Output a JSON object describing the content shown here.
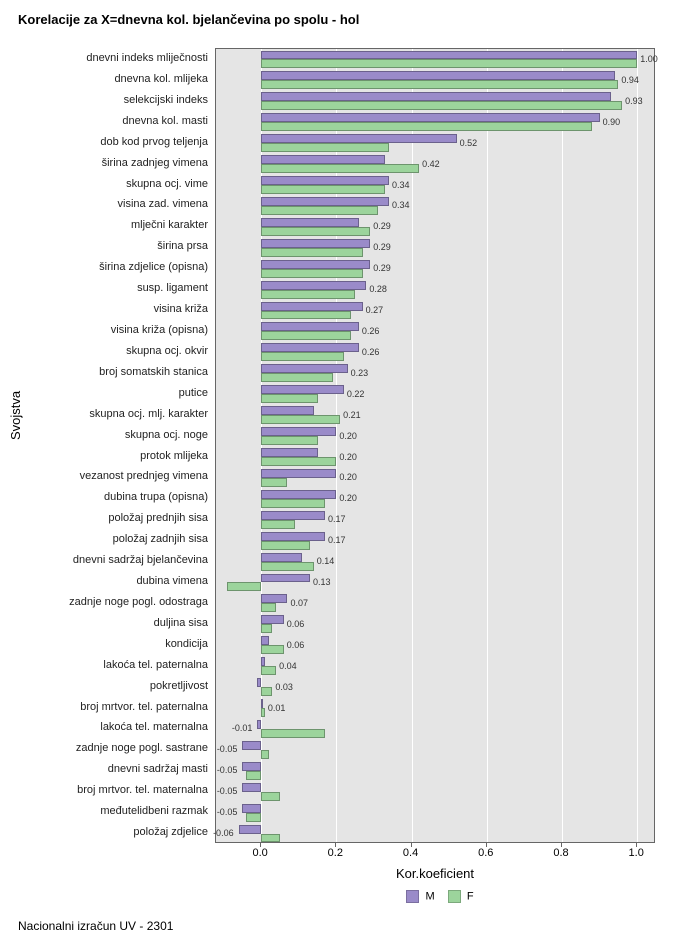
{
  "title": "Korelacije za X=dnevna kol. bjelančevina po spolu - hol",
  "y_axis_title": "Svojstva",
  "x_axis_title": "Kor.koeficient",
  "footer": "Nacionalni izračun UV - 2301",
  "legend": {
    "m": "M",
    "f": "F"
  },
  "colors": {
    "m": "#9a8bc9",
    "f": "#9cd49c",
    "panel_bg": "#e5e5e5",
    "grid": "#ffffff"
  },
  "xlim": [
    -0.12,
    1.05
  ],
  "x_ticks": [
    0.0,
    0.2,
    0.4,
    0.6,
    0.8,
    1.0
  ],
  "x_tick_labels": [
    "0.0",
    "0.2",
    "0.4",
    "0.6",
    "0.8",
    "1.0"
  ],
  "rows": [
    {
      "label": "dnevni indeks mliječnosti",
      "m": 1.0,
      "f": 1.0,
      "txt": "1.00"
    },
    {
      "label": "dnevna kol. mlijeka",
      "m": 0.94,
      "f": 0.95,
      "txt": "0.94"
    },
    {
      "label": "selekcijski indeks",
      "m": 0.93,
      "f": 0.96,
      "txt": "0.93"
    },
    {
      "label": "dnevna kol. masti",
      "m": 0.9,
      "f": 0.88,
      "txt": "0.90"
    },
    {
      "label": "dob kod prvog teljenja",
      "m": 0.52,
      "f": 0.34,
      "txt": "0.52"
    },
    {
      "label": "širina zadnjeg vimena",
      "m": 0.33,
      "f": 0.42,
      "txt": "0.42"
    },
    {
      "label": "skupna ocj. vime",
      "m": 0.34,
      "f": 0.33,
      "txt": "0.34"
    },
    {
      "label": "visina zad. vimena",
      "m": 0.34,
      "f": 0.31,
      "txt": "0.34"
    },
    {
      "label": "mlječni karakter",
      "m": 0.26,
      "f": 0.29,
      "txt": "0.29"
    },
    {
      "label": "širina prsa",
      "m": 0.29,
      "f": 0.27,
      "txt": "0.29"
    },
    {
      "label": "širina zdjelice (opisna)",
      "m": 0.29,
      "f": 0.27,
      "txt": "0.29"
    },
    {
      "label": "susp. ligament",
      "m": 0.28,
      "f": 0.25,
      "txt": "0.28"
    },
    {
      "label": "visina križa",
      "m": 0.27,
      "f": 0.24,
      "txt": "0.27"
    },
    {
      "label": "visina križa (opisna)",
      "m": 0.26,
      "f": 0.24,
      "txt": "0.26"
    },
    {
      "label": "skupna ocj. okvir",
      "m": 0.26,
      "f": 0.22,
      "txt": "0.26"
    },
    {
      "label": "broj somatskih stanica",
      "m": 0.23,
      "f": 0.19,
      "txt": "0.23"
    },
    {
      "label": "putice",
      "m": 0.22,
      "f": 0.15,
      "txt": "0.22"
    },
    {
      "label": "skupna ocj. mlj. karakter",
      "m": 0.14,
      "f": 0.21,
      "txt": "0.21"
    },
    {
      "label": "skupna ocj. noge",
      "m": 0.2,
      "f": 0.15,
      "txt": "0.20"
    },
    {
      "label": "protok mlijeka",
      "m": 0.15,
      "f": 0.2,
      "txt": "0.20"
    },
    {
      "label": "vezanost prednjeg vimena",
      "m": 0.2,
      "f": 0.07,
      "txt": "0.20"
    },
    {
      "label": "dubina trupa (opisna)",
      "m": 0.2,
      "f": 0.17,
      "txt": "0.20"
    },
    {
      "label": "položaj prednjih sisa",
      "m": 0.17,
      "f": 0.09,
      "txt": "0.17"
    },
    {
      "label": "položaj zadnjih sisa",
      "m": 0.17,
      "f": 0.13,
      "txt": "0.17"
    },
    {
      "label": "dnevni sadržaj bjelančevina",
      "m": 0.11,
      "f": 0.14,
      "txt": "0.14"
    },
    {
      "label": "dubina vimena",
      "m": 0.13,
      "f": -0.09,
      "txt": "0.13"
    },
    {
      "label": "zadnje noge pogl. odostraga",
      "m": 0.07,
      "f": 0.04,
      "txt": "0.07"
    },
    {
      "label": "duljina sisa",
      "m": 0.06,
      "f": 0.03,
      "txt": "0.06"
    },
    {
      "label": "kondicija",
      "m": 0.02,
      "f": 0.06,
      "txt": "0.06"
    },
    {
      "label": "lakoća tel. paternalna",
      "m": 0.01,
      "f": 0.04,
      "txt": "0.04"
    },
    {
      "label": "pokretljivost",
      "m": -0.01,
      "f": 0.03,
      "txt": "0.03"
    },
    {
      "label": "broj mrtvor. tel. paternalna",
      "m": 0.003,
      "f": 0.01,
      "txt": "0.01"
    },
    {
      "label": "lakoća tel. maternalna",
      "m": -0.01,
      "f": 0.17,
      "txt": "-0.01"
    },
    {
      "label": "zadnje noge pogl. sastrane",
      "m": -0.05,
      "f": 0.02,
      "txt": "-0.05"
    },
    {
      "label": "dnevni sadržaj masti",
      "m": -0.05,
      "f": -0.04,
      "txt": "-0.05"
    },
    {
      "label": "broj mrtvor. tel. maternalna",
      "m": -0.05,
      "f": 0.05,
      "txt": "-0.05"
    },
    {
      "label": "međutelidbeni razmak",
      "m": -0.05,
      "f": -0.04,
      "txt": "-0.05"
    },
    {
      "label": "položaj zdjelice",
      "m": -0.06,
      "f": 0.05,
      "txt": "-0.06"
    }
  ]
}
